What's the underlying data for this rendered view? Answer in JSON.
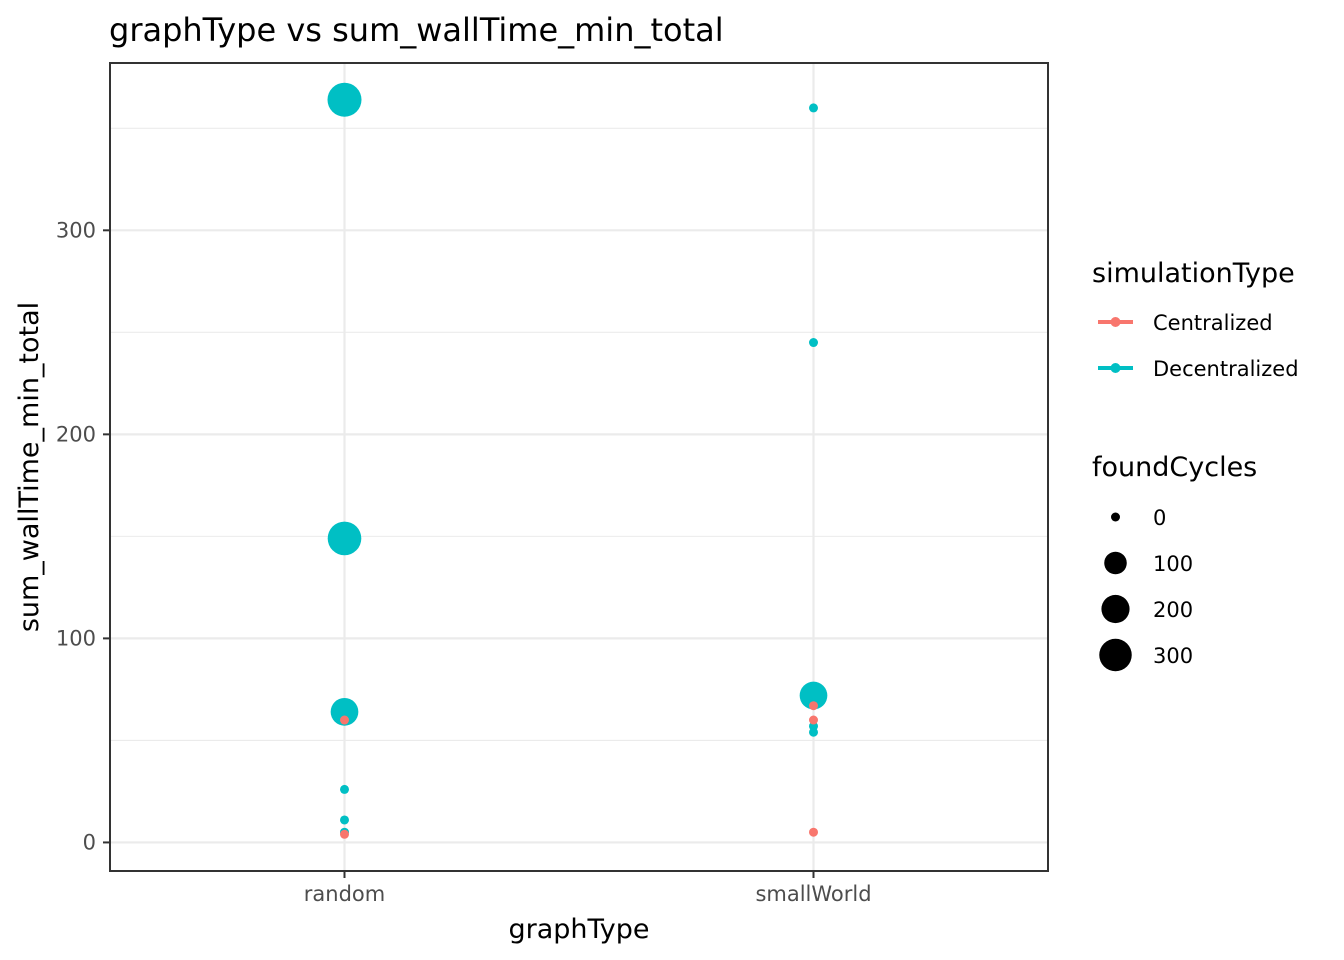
{
  "chart_data": {
    "type": "scatter",
    "title": "graphType  vs  sum_wallTime_min_total",
    "xlabel": "graphType",
    "ylabel": "sum_wallTime_min_total",
    "categories": [
      "random",
      "smallWorld"
    ],
    "ylim": [
      -14,
      382
    ],
    "y_ticks": [
      0,
      100,
      200,
      300
    ],
    "y_tick_labels": [
      "0",
      "100",
      "200",
      "300"
    ],
    "grid": true,
    "legend_position": "right",
    "color_legend": {
      "title": "simulationType",
      "entries": [
        {
          "label": "Centralized",
          "color": "#F8766D"
        },
        {
          "label": "Decentralized",
          "color": "#00BFC4"
        }
      ]
    },
    "size_legend": {
      "title": "foundCycles",
      "values": [
        0,
        100,
        200,
        300
      ],
      "labels": [
        "0",
        "100",
        "200",
        "300"
      ]
    },
    "series": [
      {
        "name": "Decentralized",
        "points": [
          {
            "x": "random",
            "y": 364,
            "size": 340
          },
          {
            "x": "random",
            "y": 149,
            "size": 330
          },
          {
            "x": "random",
            "y": 64,
            "size": 190
          },
          {
            "x": "random",
            "y": 26,
            "size": 0
          },
          {
            "x": "random",
            "y": 11,
            "size": 0
          },
          {
            "x": "random",
            "y": 5,
            "size": 0
          },
          {
            "x": "smallWorld",
            "y": 360,
            "size": 0
          },
          {
            "x": "smallWorld",
            "y": 245,
            "size": 0
          },
          {
            "x": "smallWorld",
            "y": 72,
            "size": 190
          },
          {
            "x": "smallWorld",
            "y": 57,
            "size": 0
          },
          {
            "x": "smallWorld",
            "y": 54,
            "size": 0
          }
        ]
      },
      {
        "name": "Centralized",
        "points": [
          {
            "x": "random",
            "y": 60,
            "size": 0
          },
          {
            "x": "random",
            "y": 4,
            "size": 0
          },
          {
            "x": "smallWorld",
            "y": 67,
            "size": 0
          },
          {
            "x": "smallWorld",
            "y": 60,
            "size": 0
          },
          {
            "x": "smallWorld",
            "y": 5,
            "size": 0
          }
        ]
      }
    ]
  }
}
